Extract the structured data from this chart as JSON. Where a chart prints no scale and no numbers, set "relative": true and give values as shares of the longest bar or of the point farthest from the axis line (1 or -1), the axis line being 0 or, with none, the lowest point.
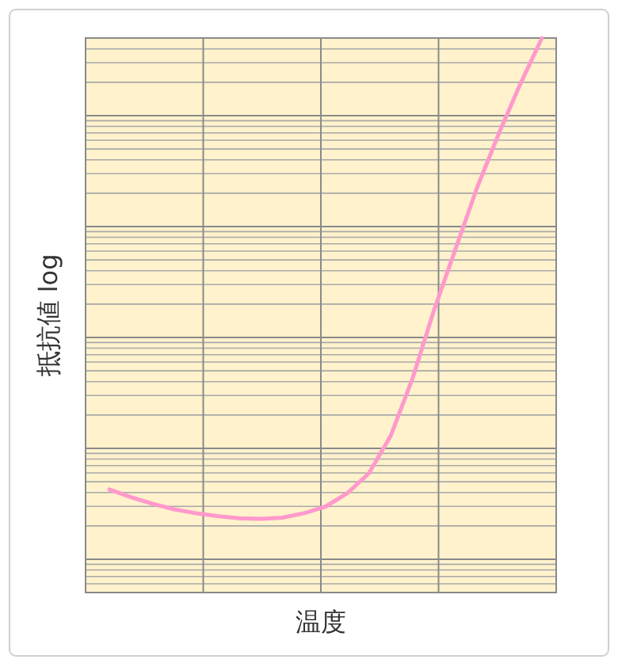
{
  "chart_data": {
    "type": "line",
    "relative": true,
    "xlabel": "温度",
    "ylabel": "抵抗値 log",
    "categories": [
      null,
      null,
      null,
      null,
      null,
      null,
      null,
      null,
      null,
      null,
      null,
      null,
      null,
      null,
      null,
      null,
      null,
      null,
      null,
      null,
      null
    ],
    "series": [
      {
        "color": "#ff99cc",
        "values": [
          0.186,
          0.172,
          0.16,
          0.15,
          0.143,
          0.138,
          0.134,
          0.133,
          0.135,
          0.143,
          0.155,
          0.179,
          0.215,
          0.282,
          0.384,
          0.508,
          0.619,
          0.73,
          0.827,
          0.917,
          1
        ]
      }
    ],
    "grid": true,
    "marker": "none",
    "line_style": "solid"
  }
}
